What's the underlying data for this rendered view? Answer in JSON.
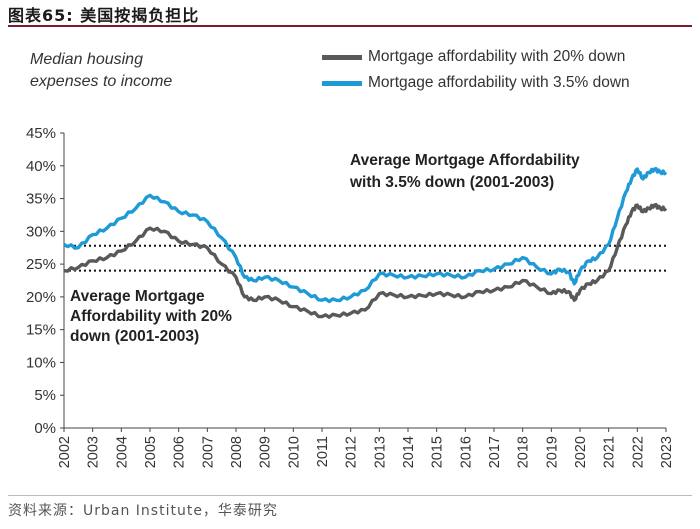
{
  "figure": {
    "title": "图表65:  美国按揭负担比",
    "source": "资料来源：Urban Institute，华泰研究"
  },
  "chart_data": {
    "type": "line",
    "subtitle": "Median housing expenses to income",
    "ylim": [
      0,
      45
    ],
    "yticks": [
      0,
      5,
      10,
      15,
      20,
      25,
      30,
      35,
      40,
      45
    ],
    "ytick_labels": [
      "0%",
      "5%",
      "10%",
      "15%",
      "20%",
      "25%",
      "30%",
      "35%",
      "40%",
      "45%"
    ],
    "xlim": [
      2002,
      2023
    ],
    "xtick_labels": [
      "2002",
      "2003",
      "2004",
      "2005",
      "2006",
      "2007",
      "2008",
      "2009",
      "2010",
      "2011",
      "2012",
      "2013",
      "2014",
      "2015",
      "2016",
      "2017",
      "2018",
      "2019",
      "2020",
      "2021",
      "2022",
      "2023"
    ],
    "legend_position": "top-right",
    "series": [
      {
        "name": "Mortgage affordability with 20% down",
        "color": "#595959",
        "x": [
          2002.0,
          2002.5,
          2003.0,
          2003.5,
          2004.0,
          2004.5,
          2005.0,
          2005.5,
          2006.0,
          2006.5,
          2007.0,
          2007.5,
          2008.0,
          2008.3,
          2008.6,
          2009.0,
          2009.5,
          2010.0,
          2010.5,
          2011.0,
          2011.5,
          2012.0,
          2012.5,
          2013.0,
          2013.5,
          2014.0,
          2014.5,
          2015.0,
          2015.5,
          2016.0,
          2016.5,
          2017.0,
          2017.5,
          2018.0,
          2018.5,
          2019.0,
          2019.3,
          2019.6,
          2019.8,
          2020.0,
          2020.3,
          2020.6,
          2021.0,
          2021.3,
          2021.6,
          2021.8,
          2022.0,
          2022.2,
          2022.4,
          2022.6,
          2022.8,
          2023.0
        ],
        "values": [
          24.0,
          24.5,
          25.5,
          26.0,
          27.0,
          28.5,
          30.5,
          30.0,
          28.5,
          28.0,
          27.5,
          25.0,
          23.0,
          20.0,
          19.5,
          20.0,
          19.5,
          18.5,
          17.8,
          17.0,
          17.2,
          17.5,
          18.0,
          20.5,
          20.3,
          20.0,
          20.2,
          20.5,
          20.3,
          20.0,
          20.8,
          21.0,
          21.5,
          22.5,
          21.5,
          20.5,
          21.0,
          20.8,
          19.5,
          21.0,
          22.0,
          22.5,
          24.0,
          27.5,
          31.0,
          33.0,
          34.0,
          33.0,
          33.5,
          34.0,
          33.5,
          33.5
        ]
      },
      {
        "name": "Mortgage affordability with 3.5% down",
        "color": "#1e9ad6",
        "x": [
          2002.0,
          2002.5,
          2003.0,
          2003.5,
          2004.0,
          2004.5,
          2005.0,
          2005.5,
          2006.0,
          2006.5,
          2007.0,
          2007.5,
          2008.0,
          2008.3,
          2008.6,
          2009.0,
          2009.5,
          2010.0,
          2010.5,
          2011.0,
          2011.5,
          2012.0,
          2012.5,
          2013.0,
          2013.5,
          2014.0,
          2014.5,
          2015.0,
          2015.5,
          2016.0,
          2016.5,
          2017.0,
          2017.5,
          2018.0,
          2018.5,
          2019.0,
          2019.3,
          2019.6,
          2019.8,
          2020.0,
          2020.3,
          2020.6,
          2021.0,
          2021.3,
          2021.6,
          2021.8,
          2022.0,
          2022.2,
          2022.4,
          2022.6,
          2022.8,
          2023.0
        ],
        "values": [
          28.0,
          27.5,
          29.5,
          30.5,
          32.0,
          33.5,
          35.5,
          34.5,
          33.0,
          32.5,
          31.5,
          29.0,
          26.0,
          23.0,
          22.5,
          23.0,
          22.5,
          21.5,
          20.5,
          19.5,
          19.5,
          20.0,
          21.0,
          23.5,
          23.3,
          23.0,
          23.2,
          23.5,
          23.3,
          23.0,
          24.0,
          24.2,
          25.0,
          26.0,
          24.5,
          23.5,
          24.2,
          23.8,
          22.0,
          24.0,
          25.5,
          26.0,
          28.0,
          32.0,
          36.0,
          38.0,
          39.5,
          38.0,
          39.0,
          39.5,
          39.0,
          39.0
        ]
      }
    ],
    "reference_lines": [
      {
        "name": "avg-3.5-down",
        "value": 27.8
      },
      {
        "name": "avg-20-down",
        "value": 24.0
      }
    ],
    "annotations": [
      {
        "name": "annotation-3.5-down",
        "lines": [
          "Average Mortgage Affordability",
          "with 3.5% down (2001-2003)"
        ]
      },
      {
        "name": "annotation-20-down",
        "lines": [
          "Average Mortgage",
          "Affordability with 20%",
          "down (2001-2003)"
        ]
      }
    ]
  }
}
